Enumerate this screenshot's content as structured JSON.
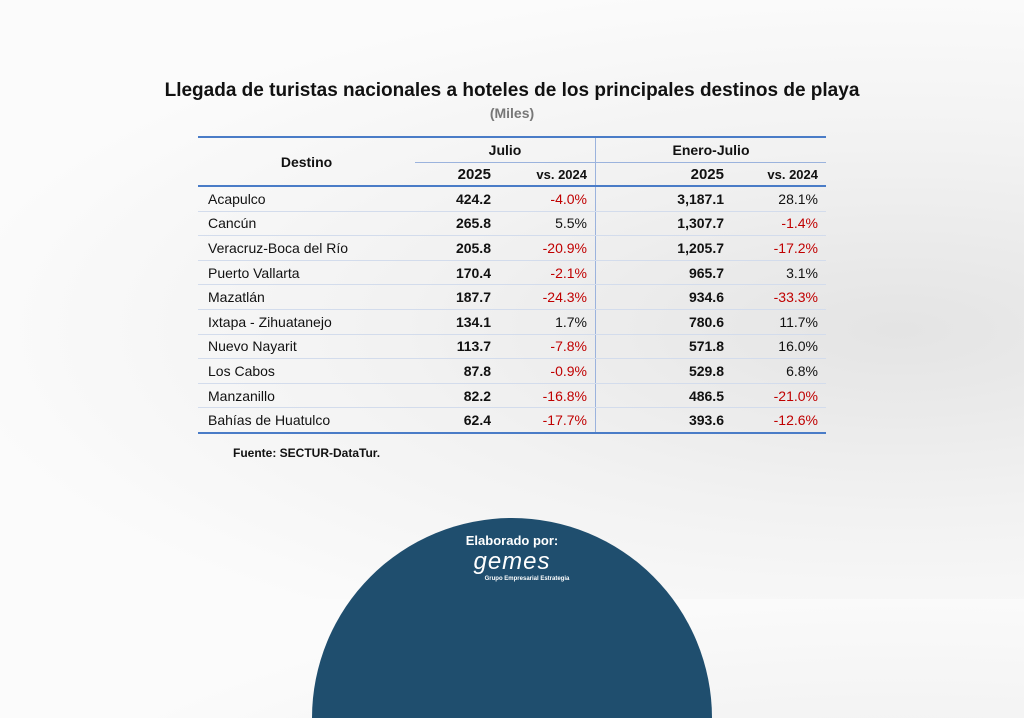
{
  "header": {
    "title": "Llegada de turistas nacionales a hoteles de los principales destinos de playa",
    "subtitle": "(Miles)"
  },
  "table": {
    "columns": {
      "destino": "Destino",
      "group1": "Julio",
      "group2": "Enero-Julio",
      "year": "2025",
      "vs": "vs. 2024"
    },
    "rows": [
      [
        "Acapulco",
        "424.2",
        "-4.0%",
        "3,187.1",
        "28.1%"
      ],
      [
        "Cancún",
        "265.8",
        "5.5%",
        "1,307.7",
        "-1.4%"
      ],
      [
        "Veracruz-Boca del Río",
        "205.8",
        "-20.9%",
        "1,205.7",
        "-17.2%"
      ],
      [
        "Puerto Vallarta",
        "170.4",
        "-2.1%",
        "965.7",
        "3.1%"
      ],
      [
        "Mazatlán",
        "187.7",
        "-24.3%",
        "934.6",
        "-33.3%"
      ],
      [
        "Ixtapa - Zihuatanejo",
        "134.1",
        "1.7%",
        "780.6",
        "11.7%"
      ],
      [
        "Nuevo Nayarit",
        "113.7",
        "-7.8%",
        "571.8",
        "16.0%"
      ],
      [
        "Los Cabos",
        "87.8",
        "-0.9%",
        "529.8",
        "6.8%"
      ],
      [
        "Manzanillo",
        "82.2",
        "-16.8%",
        "486.5",
        "-21.0%"
      ],
      [
        "Bahías de Huatulco",
        "62.4",
        "-17.7%",
        "393.6",
        "-12.6%"
      ]
    ]
  },
  "source": "Fuente: SECTUR-DataTur.",
  "footer": {
    "label": "Elaborado por:",
    "brand": "gemes",
    "tagline": "Grupo Empresarial Estrategia"
  }
}
